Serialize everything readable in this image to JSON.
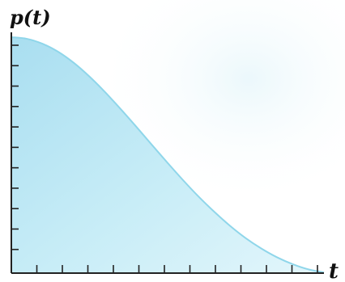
{
  "chart_data": {
    "type": "area",
    "title": "",
    "xlabel": "t",
    "ylabel": "p(t)",
    "x": [
      0,
      0.5,
      1,
      1.5,
      2,
      2.5,
      3,
      3.5,
      4,
      4.5,
      5,
      5.5,
      6,
      6.5,
      7,
      7.5,
      8,
      8.5,
      9,
      9.5,
      10
    ],
    "series": [
      {
        "values": [
          1.0,
          0.993,
          0.972,
          0.938,
          0.891,
          0.833,
          0.767,
          0.695,
          0.62,
          0.543,
          0.467,
          0.393,
          0.323,
          0.259,
          0.2,
          0.148,
          0.104,
          0.067,
          0.038,
          0.016,
          0.003
        ]
      }
    ],
    "xlim": [
      0,
      10
    ],
    "ylim": [
      0,
      1
    ],
    "x_ticks": 12,
    "y_ticks": 11,
    "tick_labels": false,
    "grid": false,
    "legend": "none",
    "colors": {
      "fill": "#bfe8f4",
      "curve": "#8fd6ea",
      "axis": "#222222",
      "background": "#ffffff"
    }
  }
}
